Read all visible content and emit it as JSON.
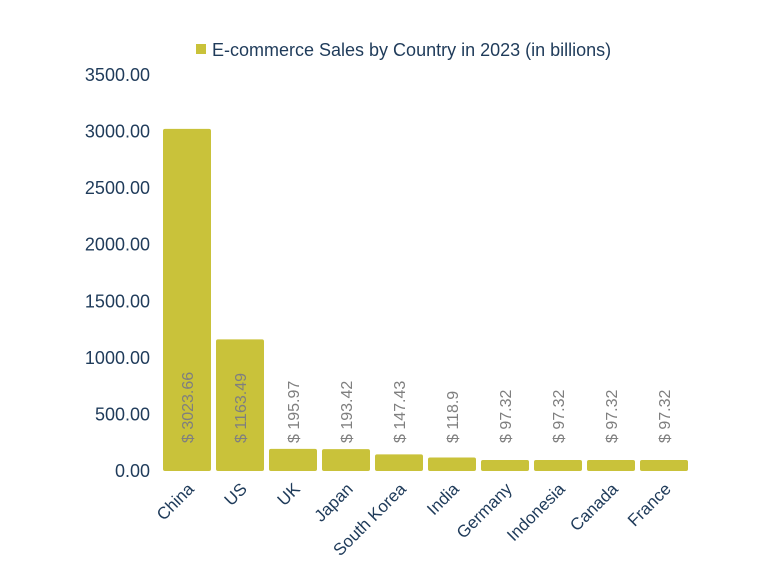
{
  "chart_data": {
    "type": "bar",
    "categories": [
      "China",
      "US",
      "UK",
      "Japan",
      "South Korea",
      "India",
      "Germany",
      "Indonesia",
      "Canada",
      "France"
    ],
    "series": [
      {
        "name": "E-commerce Sales by Country in 2023 (in billions)",
        "values": [
          3023.66,
          1163.49,
          195.97,
          193.42,
          147.43,
          118.9,
          97.32,
          97.32,
          97.32,
          97.32
        ],
        "data_labels": [
          "$ 3023.66",
          "$ 1163.49",
          "$ 195.97",
          "$ 193.42",
          "$ 147.43",
          "$ 118.9",
          "$ 97.32",
          "$ 97.32",
          "$ 97.32",
          "$ 97.32"
        ]
      }
    ],
    "yticks": [
      "0.00",
      "500.00",
      "1000.00",
      "1500.00",
      "2000.00",
      "2500.00",
      "3000.00",
      "3500.00"
    ],
    "ylim": [
      0,
      3500
    ],
    "grid": false,
    "legend_position": "top",
    "colors": {
      "bar": "#c9c23a",
      "axis_text": "#1f3b5a",
      "data_label": "#7f7f7f"
    }
  }
}
